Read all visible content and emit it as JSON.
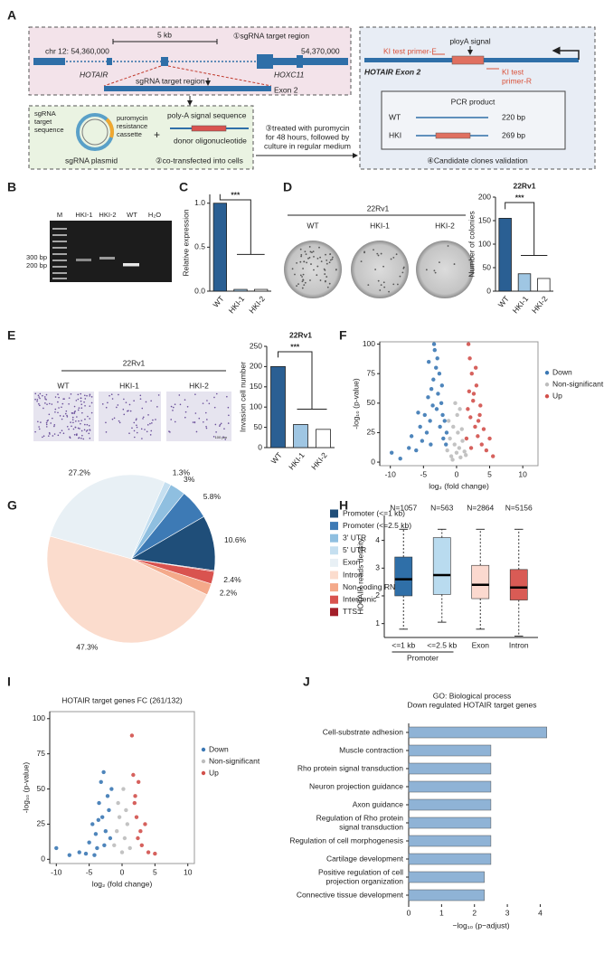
{
  "panel_labels": [
    "A",
    "B",
    "C",
    "D",
    "E",
    "F",
    "G",
    "H",
    "I",
    "J"
  ],
  "panel_a": {
    "region_title": "①sgRNA target region",
    "scale": "5 kb",
    "coord_left": "chr 12: 54,360,000",
    "coord_right": "54,370,000",
    "gene_1": "HOTAIR",
    "gene_2": "HOXC11",
    "target": "sgRNA target region",
    "exon": "Exon 2",
    "sgrna_target": [
      "sgRNA",
      "target",
      "sequence"
    ],
    "cassette": [
      "puromycin",
      "resistance",
      "cassette"
    ],
    "plasmid": "sgRNA plasmid",
    "plus": "+",
    "polya": "poly-A signal sequence",
    "donor": "donor oligonucleotide",
    "step2": "②co-transfected into cells",
    "step3": [
      "③treated with puromycin",
      "for 48 hours, followed by",
      "culture in regular medium"
    ],
    "polya_signal": "ployA signal",
    "exon2": "HOTAIR Exon 2",
    "primer_f": "KI test primer-F",
    "primer_r": [
      "KI test",
      "primer-R"
    ],
    "pcr": "PCR product",
    "rows": [
      [
        "WT",
        "220 bp"
      ],
      [
        "HKI",
        "269 bp"
      ]
    ],
    "step4": "④Candidate clones validation"
  },
  "panel_b": {
    "lanes": [
      "M",
      "HKI-1",
      "HKI-2",
      "WT",
      "H₂O"
    ],
    "markers": [
      "300 bp",
      "200 bp"
    ]
  },
  "panel_d": {
    "cell_line": "22Rv1",
    "labels": [
      "WT",
      "HKI-1",
      "HKI-2"
    ]
  },
  "panel_e": {
    "cell_line": "22Rv1",
    "labels": [
      "WT",
      "HKI-1",
      "HKI-2"
    ],
    "scale": "100 μm"
  },
  "chart_data": [
    {
      "type": "bar",
      "y_label": "Relative expression",
      "categories": [
        "WT",
        "HKI-1",
        "HKI-2"
      ],
      "values": [
        1.0,
        0.02,
        0.02
      ],
      "colors": [
        "#2a5f93",
        "#9fc6e3",
        "#ffffff"
      ],
      "ylim": [
        0,
        1.1
      ],
      "yticks": [
        {
          "value": 0,
          "label": "0.0"
        },
        {
          "value": 0.5,
          "label": "0.5"
        },
        {
          "value": 1,
          "label": "1.0"
        }
      ],
      "significance": "***"
    },
    {
      "type": "bar",
      "title": "22Rv1",
      "y_label": "Number of colonies",
      "categories": [
        "WT",
        "HKI-1",
        "HKI-2"
      ],
      "values": [
        155,
        37,
        27
      ],
      "colors": [
        "#2a5f93",
        "#9fc6e3",
        "#ffffff"
      ],
      "ylim": [
        0,
        200
      ],
      "yticks": [
        0,
        50,
        100,
        150,
        200
      ],
      "significance": "***"
    },
    {
      "type": "bar",
      "title": "22Rv1",
      "y_label": "Invasion cell number",
      "categories": [
        "WT",
        "HKI-1",
        "HKI-2"
      ],
      "values": [
        200,
        57,
        45
      ],
      "colors": [
        "#2a5f93",
        "#9fc6e3",
        "#ffffff"
      ],
      "ylim": [
        0,
        250
      ],
      "yticks": [
        0,
        50,
        100,
        150,
        200,
        250
      ],
      "significance": "***"
    },
    {
      "type": "scatter",
      "x_label": "log₂ (fold change)",
      "y_label": "-log₁₀ (p-value)",
      "xlim": [
        -11.6,
        12.3
      ],
      "xticks": [
        -10,
        -5,
        0,
        5,
        10
      ],
      "ylim": [
        -3,
        102
      ],
      "yticks": [
        0,
        25,
        50,
        75,
        100
      ],
      "legend": "right",
      "series": [
        {
          "name": "Down",
          "color": "#3b78b4",
          "x": [
            -9.8,
            -8.5,
            -7.2,
            -6.8,
            -6.1,
            -5.5,
            -5.2,
            -4.8,
            -4.5,
            -4.3,
            -4.0,
            -3.8,
            -3.6,
            -3.5,
            -3.3,
            -3.1,
            -3.0,
            -2.8,
            -2.6,
            -2.5,
            -2.3,
            -2.1,
            -2.0,
            -1.8,
            -1.6,
            -1.5,
            -4.2,
            -3.4,
            -5.8,
            -2.9,
            -3.9,
            -2.2
          ],
          "values": [
            8,
            3,
            12,
            22,
            10,
            30,
            18,
            40,
            25,
            55,
            35,
            62,
            48,
            70,
            95,
            80,
            45,
            58,
            75,
            30,
            50,
            40,
            20,
            35,
            15,
            25,
            85,
            100,
            42,
            88,
            15,
            65
          ]
        },
        {
          "name": "Non-significant",
          "color": "#bdbdbd",
          "x": [
            -1.4,
            -1.0,
            -0.8,
            -0.5,
            -0.3,
            0,
            0.2,
            0.4,
            0.6,
            0.9,
            1.2,
            1.4,
            -1.2,
            0.1,
            -0.6,
            0.8,
            -0.2,
            0.5
          ],
          "values": [
            10,
            20,
            5,
            30,
            15,
            8,
            25,
            12,
            4,
            18,
            9,
            6,
            35,
            40,
            2,
            28,
            50,
            45
          ]
        },
        {
          "name": "Up",
          "color": "#d2504b",
          "x": [
            1.5,
            1.7,
            1.9,
            2.1,
            2.3,
            2.5,
            2.8,
            3.0,
            3.2,
            3.5,
            3.8,
            4.1,
            4.5,
            5.0,
            5.5,
            2.0,
            2.6,
            3.3,
            1.8,
            2.2,
            3.6,
            2.9
          ],
          "values": [
            20,
            45,
            60,
            38,
            75,
            52,
            30,
            65,
            22,
            40,
            15,
            28,
            10,
            20,
            5,
            88,
            58,
            35,
            100,
            12,
            48,
            80
          ]
        }
      ]
    },
    {
      "type": "pie",
      "categories": [
        "Promoter (<=1 kb)",
        "Promoter (<=2.5 kb)",
        "3' UTR",
        "5' UTR",
        "Exon",
        "Intron",
        "Non-coding RNAs",
        "Intergenic",
        "TTS"
      ],
      "values": [
        10.6,
        5.8,
        3,
        1.3,
        27.2,
        47.3,
        2.2,
        2.4,
        0.2
      ],
      "value_labels": [
        "10.6%",
        "5.8%",
        "3%",
        "1.3%",
        "27.2%",
        "47.3%",
        "2.2%",
        "2.4%",
        null
      ],
      "colors": [
        "#1f4e79",
        "#3d7ab5",
        "#8fbfe0",
        "#c5dff0",
        "#e8f0f5",
        "#fbdccd",
        "#f4a98a",
        "#d9534f",
        "#a31f2a"
      ]
    },
    {
      "type": "box",
      "y_label": "HOTAIR reads density",
      "categories": [
        "<=1 kb",
        "<=2.5 kb",
        "Exon",
        "Intron"
      ],
      "group_label": "Promoter",
      "n_labels": [
        "N=1057",
        "N=563",
        "N=2864",
        "N=5156"
      ],
      "whisker_low": [
        0.8,
        1.05,
        0.8,
        0.55
      ],
      "q1": [
        2.0,
        2.05,
        1.9,
        1.85
      ],
      "median": [
        2.6,
        2.75,
        2.4,
        2.3
      ],
      "q3": [
        3.4,
        4.1,
        3.1,
        2.95
      ],
      "whisker_high": [
        4.4,
        4.4,
        4.4,
        4.4
      ],
      "colors": [
        "#2f6fa8",
        "#b9dbef",
        "#fbd9cf",
        "#d95b55"
      ],
      "ylim": [
        0.5,
        4.9
      ],
      "yticks": [
        1,
        2,
        3,
        4
      ]
    },
    {
      "type": "scatter",
      "title": "HOTAIR target genes FC (261/132)",
      "x_label": "log₂ (fold change)",
      "y_label": "-log₁₀ (p-value)",
      "xlim": [
        -11,
        11
      ],
      "xticks": [
        -10,
        -5,
        0,
        5,
        10
      ],
      "ylim": [
        -3,
        105
      ],
      "yticks": [
        0,
        25,
        50,
        75,
        100
      ],
      "legend": "right",
      "series": [
        {
          "name": "Down",
          "color": "#3b78b4",
          "x": [
            -10,
            -8,
            -6.5,
            -5,
            -4.5,
            -4,
            -3.5,
            -3.2,
            -3,
            -2.8,
            -2.5,
            -2.2,
            -2,
            -1.8,
            -1.6,
            -4.2,
            -3.6,
            -2.7,
            -3.8,
            -5.5
          ],
          "values": [
            8,
            3,
            5,
            12,
            25,
            18,
            40,
            55,
            30,
            62,
            20,
            45,
            35,
            15,
            50,
            3,
            28,
            10,
            8,
            4
          ]
        },
        {
          "name": "Non-significant",
          "color": "#bdbdbd",
          "x": [
            -1.2,
            -0.8,
            -0.4,
            0,
            0.4,
            0.8,
            1.2,
            -0.6,
            0.2,
            0.6
          ],
          "values": [
            10,
            20,
            30,
            5,
            15,
            25,
            8,
            40,
            50,
            35
          ]
        },
        {
          "name": "Up",
          "color": "#d2504b",
          "x": [
            1.5,
            1.7,
            2,
            2.2,
            2.5,
            2.8,
            3,
            3.5,
            4,
            5,
            1.9,
            2.4
          ],
          "values": [
            88,
            60,
            45,
            30,
            55,
            20,
            10,
            25,
            5,
            4,
            40,
            15
          ]
        }
      ]
    },
    {
      "type": "barh",
      "title": [
        "GO: Biological process",
        "Down regulated HOTAIR target genes"
      ],
      "x_label": "−log₁₀ (p−adjust)",
      "categories": [
        [
          "Cell-substrate adhesion"
        ],
        [
          "Muscle contraction"
        ],
        [
          "Rho protein signal transduction"
        ],
        [
          "Neuron projection guidance"
        ],
        [
          "Axon guidance"
        ],
        [
          "Regulation of Rho protein",
          "signal transduction"
        ],
        [
          "Regulation of cell morphogenesis"
        ],
        [
          "Cartilage development"
        ],
        [
          "Positive regulation of cell",
          "projection organization"
        ],
        [
          "Connective tissue development"
        ]
      ],
      "values": [
        4.2,
        2.5,
        2.5,
        2.5,
        2.5,
        2.5,
        2.5,
        2.5,
        2.3,
        2.3
      ],
      "color": "#8fb3d6",
      "xlim": [
        0,
        4.4
      ],
      "xticks": [
        0,
        1,
        2,
        3,
        4
      ]
    }
  ]
}
